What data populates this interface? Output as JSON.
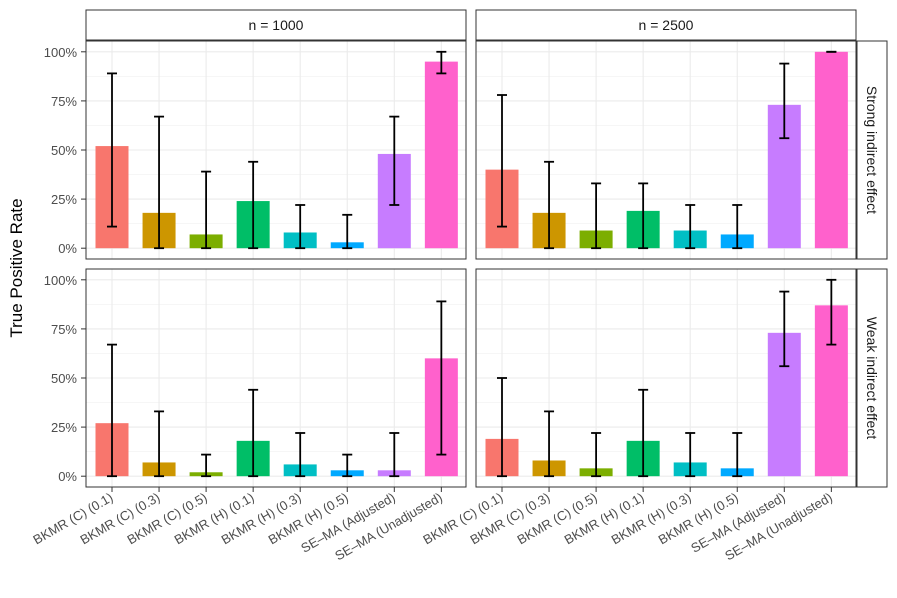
{
  "chart_data": {
    "type": "bar",
    "ylabel": "True Positive Rate",
    "xlabel": "",
    "ylim": [
      0,
      1
    ],
    "yticks": [
      "0%",
      "25%",
      "50%",
      "75%",
      "100%"
    ],
    "categories": [
      "BKMR (C) (0.1)",
      "BKMR (C) (0.3)",
      "BKMR (C) (0.5)",
      "BKMR (H) (0.1)",
      "BKMR (H) (0.3)",
      "BKMR (H) (0.5)",
      "SE–MA (Adjusted)",
      "SE–MA (Unadjusted)"
    ],
    "colors": [
      "#F8766D",
      "#CD9600",
      "#7CAE00",
      "#00BE67",
      "#00BFC4",
      "#00A9FF",
      "#C77CFF",
      "#FF61CC"
    ],
    "col_labels": [
      "n = 1000",
      "n = 2500"
    ],
    "row_labels": [
      "Strong indirect effect",
      "Weak indirect effect"
    ],
    "panels": [
      {
        "col": "n = 1000",
        "row": "Strong indirect effect",
        "values": [
          0.52,
          0.18,
          0.07,
          0.24,
          0.08,
          0.03,
          0.48,
          0.95
        ],
        "lower": [
          0.11,
          0.0,
          0.0,
          0.0,
          0.0,
          0.0,
          0.22,
          0.89
        ],
        "upper": [
          0.89,
          0.67,
          0.39,
          0.44,
          0.22,
          0.17,
          0.67,
          1.0
        ]
      },
      {
        "col": "n = 2500",
        "row": "Strong indirect effect",
        "values": [
          0.4,
          0.18,
          0.09,
          0.19,
          0.09,
          0.07,
          0.73,
          1.0
        ],
        "lower": [
          0.11,
          0.0,
          0.0,
          0.0,
          0.0,
          0.0,
          0.56,
          1.0
        ],
        "upper": [
          0.78,
          0.44,
          0.33,
          0.33,
          0.22,
          0.22,
          0.94,
          1.0
        ]
      },
      {
        "col": "n = 1000",
        "row": "Weak indirect effect",
        "values": [
          0.27,
          0.07,
          0.02,
          0.18,
          0.06,
          0.03,
          0.03,
          0.6
        ],
        "lower": [
          0.0,
          0.0,
          0.0,
          0.0,
          0.0,
          0.0,
          0.0,
          0.11
        ],
        "upper": [
          0.67,
          0.33,
          0.11,
          0.44,
          0.22,
          0.11,
          0.22,
          0.89
        ]
      },
      {
        "col": "n = 2500",
        "row": "Weak indirect effect",
        "values": [
          0.19,
          0.08,
          0.04,
          0.18,
          0.07,
          0.04,
          0.73,
          0.87
        ],
        "lower": [
          0.0,
          0.0,
          0.0,
          0.0,
          0.0,
          0.0,
          0.56,
          0.67
        ],
        "upper": [
          0.5,
          0.33,
          0.22,
          0.44,
          0.22,
          0.22,
          0.94,
          1.0
        ]
      }
    ]
  }
}
